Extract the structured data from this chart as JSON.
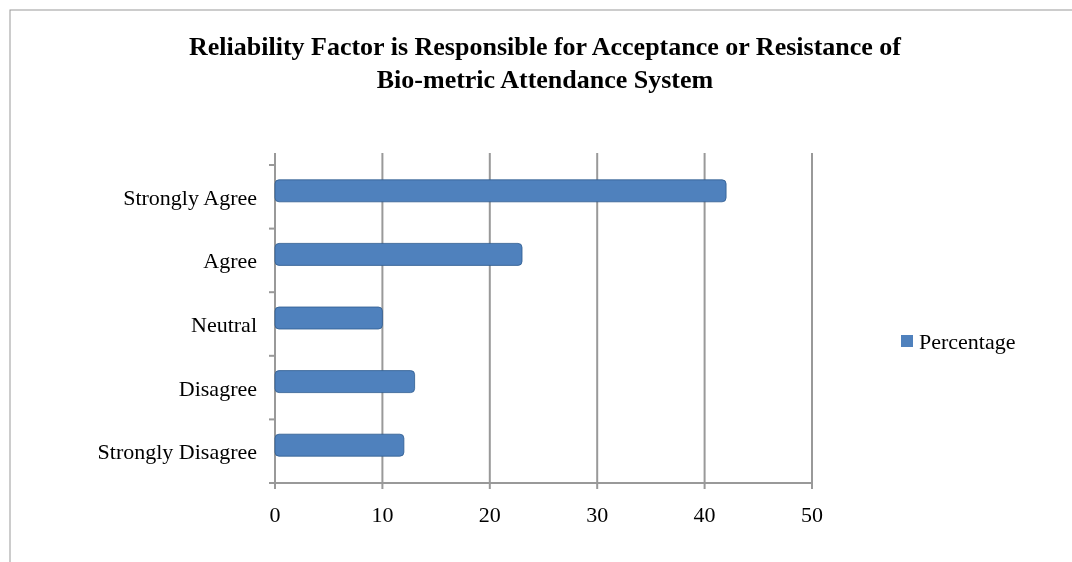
{
  "chart_data": {
    "type": "bar",
    "orientation": "horizontal",
    "title": "Reliability Factor is Responsible for Acceptance or Resistance of Bio-metric Attendance System",
    "categories": [
      "Strongly Agree",
      "Agree",
      "Neutral",
      "Disagree",
      "Strongly Disagree"
    ],
    "series": [
      {
        "name": "Percentage",
        "color": "#4f81bd",
        "values": [
          42,
          23,
          10,
          13,
          12
        ]
      }
    ],
    "xlim": [
      0,
      50
    ],
    "xticks": [
      0,
      10,
      20,
      30,
      40,
      50
    ],
    "grid": "x",
    "legend": "right"
  }
}
